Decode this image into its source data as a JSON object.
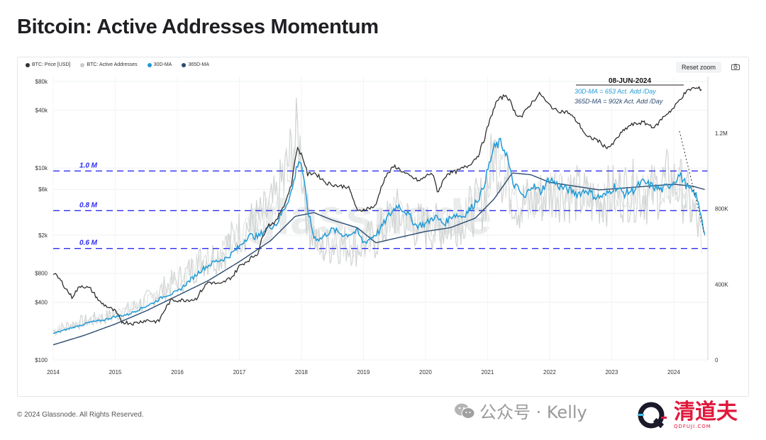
{
  "page": {
    "title": "Bitcoin: Active Addresses Momentum",
    "copyright": "© 2024 Glassnode. All Rights Reserved.",
    "reset_zoom_label": "Reset zoom",
    "watermark_text": "公众号 · Kelly",
    "logo_text": "清道夫",
    "logo_sub": "QDFUJI.COM"
  },
  "chart_data": {
    "type": "line",
    "legend": [
      {
        "name": "BTC: Price [USD]",
        "color": "#333333"
      },
      {
        "name": "BTC: Active Addresses",
        "color": "#c8ccca"
      },
      {
        "name": "30D-MA",
        "color": "#1f9ad6"
      },
      {
        "name": "365D-MA",
        "color": "#2c4a6e"
      }
    ],
    "x_ticks": [
      "2014",
      "2015",
      "2016",
      "2017",
      "2018",
      "2019",
      "2020",
      "2021",
      "2022",
      "2023",
      "2024"
    ],
    "x_range": [
      2014.0,
      2024.55
    ],
    "y_left": {
      "scale": "log",
      "range": [
        100,
        90000
      ],
      "ticks": [
        "$80k",
        "$40k",
        "$10k",
        "$6k",
        "$2k",
        "$800",
        "$400",
        "$100"
      ],
      "tick_values": [
        80000,
        40000,
        10000,
        6000,
        2000,
        800,
        400,
        100
      ]
    },
    "y_right": {
      "scale": "linear",
      "range": [
        0,
        1500000
      ],
      "ticks": [
        "1.2M",
        "800K",
        "400K",
        "0"
      ],
      "tick_values": [
        1200000,
        800000,
        400000,
        0
      ]
    },
    "reference_lines": [
      {
        "label": "1.0 M",
        "value": 1000000,
        "color": "#2d2df0"
      },
      {
        "label": "0.8 M",
        "value": 790000,
        "color": "#2d2df0"
      },
      {
        "label": "0.6 M",
        "value": 590000,
        "color": "#2d2df0"
      }
    ],
    "annotation": {
      "date": "08-JUN-2024",
      "line1": "30D-MA = 653 Act. Add /Day",
      "line2": "365D-MA = 902k  Act. Add /Day"
    },
    "watermark": "glassnode",
    "series": [
      {
        "name": "BTC: Price [USD]",
        "axis": "left",
        "x": [
          2014.0,
          2014.1,
          2014.2,
          2014.3,
          2014.45,
          2014.6,
          2014.75,
          2014.9,
          2015.0,
          2015.1,
          2015.3,
          2015.5,
          2015.7,
          2015.9,
          2016.1,
          2016.3,
          2016.5,
          2016.7,
          2016.9,
          2017.0,
          2017.15,
          2017.3,
          2017.45,
          2017.6,
          2017.75,
          2017.85,
          2017.93,
          2018.0,
          2018.1,
          2018.2,
          2018.4,
          2018.6,
          2018.75,
          2018.9,
          2019.0,
          2019.2,
          2019.35,
          2019.5,
          2019.7,
          2019.9,
          2020.1,
          2020.2,
          2020.35,
          2020.5,
          2020.7,
          2020.85,
          2020.95,
          2021.05,
          2021.15,
          2021.3,
          2021.45,
          2021.55,
          2021.7,
          2021.85,
          2021.95,
          2022.1,
          2022.3,
          2022.45,
          2022.6,
          2022.75,
          2022.9,
          2023.0,
          2023.15,
          2023.3,
          2023.5,
          2023.7,
          2023.85,
          2024.0,
          2024.2,
          2024.3,
          2024.45
        ],
        "values": [
          800,
          700,
          560,
          450,
          600,
          550,
          400,
          350,
          320,
          250,
          240,
          260,
          250,
          420,
          420,
          430,
          650,
          610,
          750,
          950,
          1100,
          1300,
          2500,
          2800,
          4500,
          7000,
          16000,
          14000,
          8500,
          9000,
          7000,
          6500,
          6400,
          3500,
          3700,
          4000,
          8000,
          10500,
          8500,
          7300,
          9000,
          5500,
          8800,
          9200,
          10700,
          13500,
          20000,
          33000,
          50000,
          58000,
          37000,
          34000,
          47000,
          60000,
          48000,
          40000,
          38000,
          30000,
          21000,
          20000,
          16500,
          17000,
          23000,
          28000,
          30000,
          26500,
          35000,
          42000,
          62000,
          68000,
          67000
        ]
      },
      {
        "name": "BTC: Active Addresses",
        "axis": "right",
        "x": [
          2014.0,
          2014.3,
          2014.6,
          2014.9,
          2015.2,
          2015.5,
          2015.8,
          2016.1,
          2016.4,
          2016.7,
          2017.0,
          2017.2,
          2017.4,
          2017.6,
          2017.8,
          2017.95,
          2018.1,
          2018.3,
          2018.6,
          2018.9,
          2019.2,
          2019.5,
          2019.8,
          2020.1,
          2020.4,
          2020.7,
          2020.95,
          2021.1,
          2021.3,
          2021.5,
          2021.8,
          2022.1,
          2022.4,
          2022.7,
          2023.0,
          2023.3,
          2023.6,
          2023.9,
          2024.1,
          2024.3,
          2024.45
        ],
        "values": [
          150000,
          190000,
          210000,
          230000,
          260000,
          310000,
          380000,
          440000,
          530000,
          560000,
          680000,
          720000,
          760000,
          840000,
          1050000,
          1200000,
          750000,
          590000,
          620000,
          600000,
          640000,
          780000,
          720000,
          700000,
          710000,
          780000,
          850000,
          1100000,
          950000,
          820000,
          850000,
          900000,
          880000,
          840000,
          880000,
          900000,
          870000,
          950000,
          920000,
          800000,
          640000
        ]
      },
      {
        "name": "30D-MA",
        "axis": "right",
        "x": [
          2014.0,
          2014.2,
          2014.4,
          2014.6,
          2014.8,
          2015.0,
          2015.2,
          2015.4,
          2015.6,
          2015.8,
          2016.0,
          2016.2,
          2016.4,
          2016.6,
          2016.8,
          2017.0,
          2017.15,
          2017.3,
          2017.45,
          2017.6,
          2017.75,
          2017.85,
          2017.95,
          2018.0,
          2018.1,
          2018.2,
          2018.3,
          2018.5,
          2018.7,
          2018.9,
          2019.0,
          2019.1,
          2019.25,
          2019.4,
          2019.55,
          2019.7,
          2019.85,
          2020.0,
          2020.15,
          2020.3,
          2020.45,
          2020.6,
          2020.75,
          2020.9,
          2021.0,
          2021.1,
          2021.2,
          2021.3,
          2021.4,
          2021.5,
          2021.6,
          2021.7,
          2021.85,
          2022.0,
          2022.15,
          2022.3,
          2022.45,
          2022.6,
          2022.75,
          2022.9,
          2023.05,
          2023.2,
          2023.35,
          2023.5,
          2023.65,
          2023.8,
          2023.95,
          2024.1,
          2024.25,
          2024.35,
          2024.45,
          2024.5
        ],
        "values": [
          140000,
          160000,
          180000,
          200000,
          210000,
          230000,
          240000,
          270000,
          300000,
          340000,
          360000,
          420000,
          480000,
          520000,
          540000,
          600000,
          660000,
          650000,
          700000,
          720000,
          820000,
          900000,
          1060000,
          1040000,
          800000,
          650000,
          640000,
          690000,
          660000,
          680000,
          620000,
          640000,
          680000,
          760000,
          820000,
          780000,
          710000,
          720000,
          760000,
          720000,
          770000,
          760000,
          810000,
          880000,
          1000000,
          1120000,
          1150000,
          1100000,
          940000,
          900000,
          850000,
          930000,
          890000,
          960000,
          920000,
          900000,
          880000,
          900000,
          860000,
          870000,
          920000,
          880000,
          900000,
          940000,
          920000,
          900000,
          930000,
          980000,
          900000,
          880000,
          760000,
          660000
        ]
      },
      {
        "name": "365D-MA",
        "axis": "right",
        "x": [
          2014.0,
          2014.5,
          2015.0,
          2015.5,
          2016.0,
          2016.5,
          2017.0,
          2017.5,
          2017.9,
          2018.2,
          2018.5,
          2018.9,
          2019.2,
          2019.6,
          2020.0,
          2020.4,
          2020.8,
          2021.1,
          2021.4,
          2021.7,
          2022.0,
          2022.4,
          2022.8,
          2023.2,
          2023.6,
          2024.0,
          2024.3,
          2024.5
        ],
        "values": [
          80000,
          130000,
          190000,
          260000,
          340000,
          420000,
          520000,
          630000,
          760000,
          780000,
          740000,
          700000,
          620000,
          650000,
          680000,
          700000,
          750000,
          850000,
          990000,
          980000,
          940000,
          920000,
          900000,
          910000,
          920000,
          930000,
          920000,
          902000
        ]
      }
    ]
  }
}
